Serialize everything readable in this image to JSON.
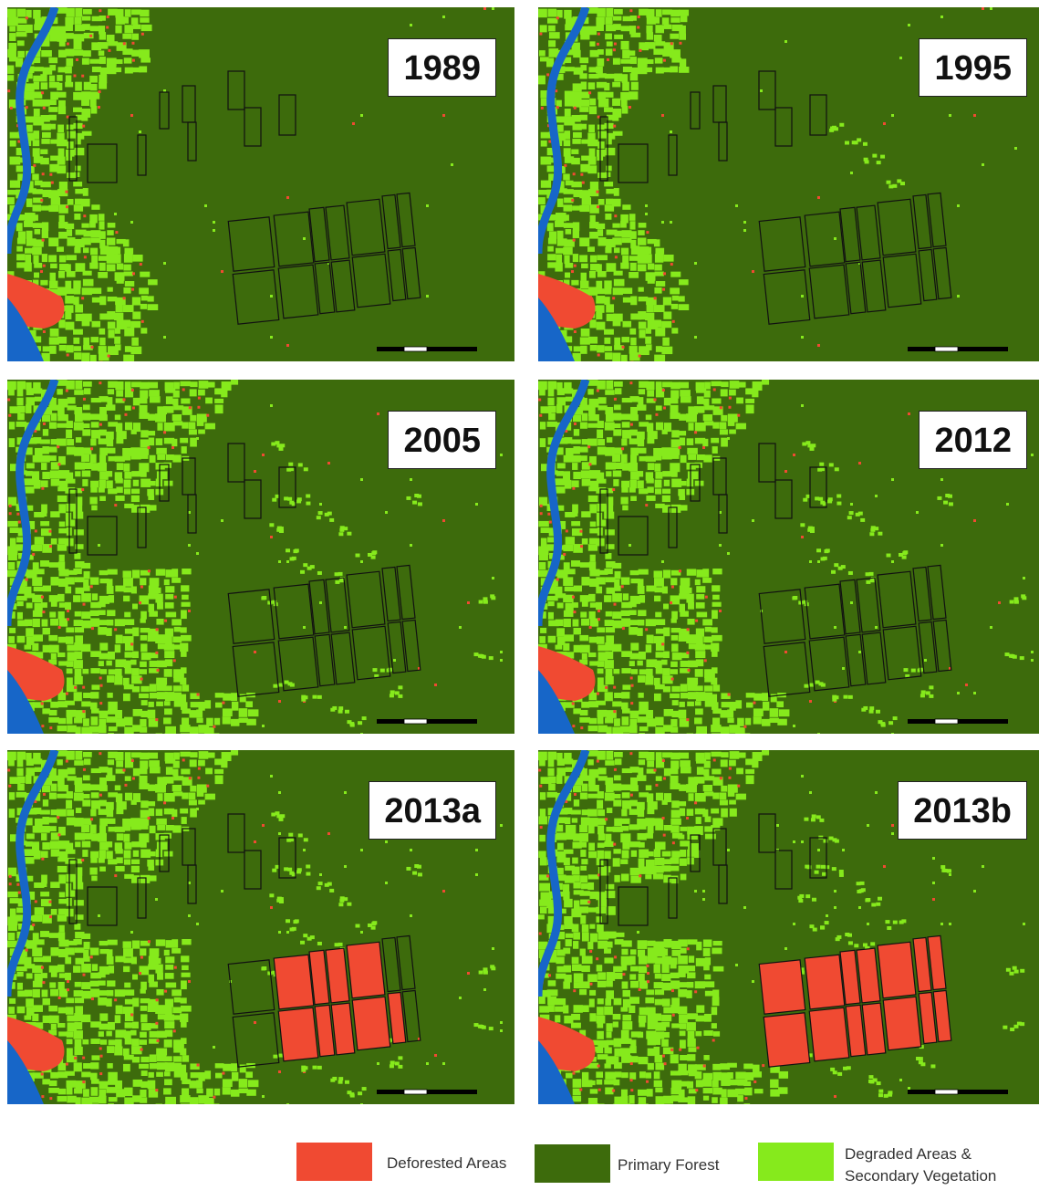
{
  "colors": {
    "deforested": "#f04a32",
    "primary_forest": "#3d6b0c",
    "degraded": "#86ea1c",
    "river": "#1766c8",
    "outline": "#111111"
  },
  "panels": [
    {
      "label": "1989",
      "stage": 0
    },
    {
      "label": "1995",
      "stage": 1
    },
    {
      "label": "2005",
      "stage": 2
    },
    {
      "label": "2012",
      "stage": 3
    },
    {
      "label": "2013a",
      "stage": 4
    },
    {
      "label": "2013b",
      "stage": 5
    }
  ],
  "legend": {
    "deforested_label": "Deforested Areas",
    "primary_label": "Primary Forest",
    "degraded_line1": "Degraded Areas &",
    "degraded_line2": "Secondary Vegetation"
  }
}
